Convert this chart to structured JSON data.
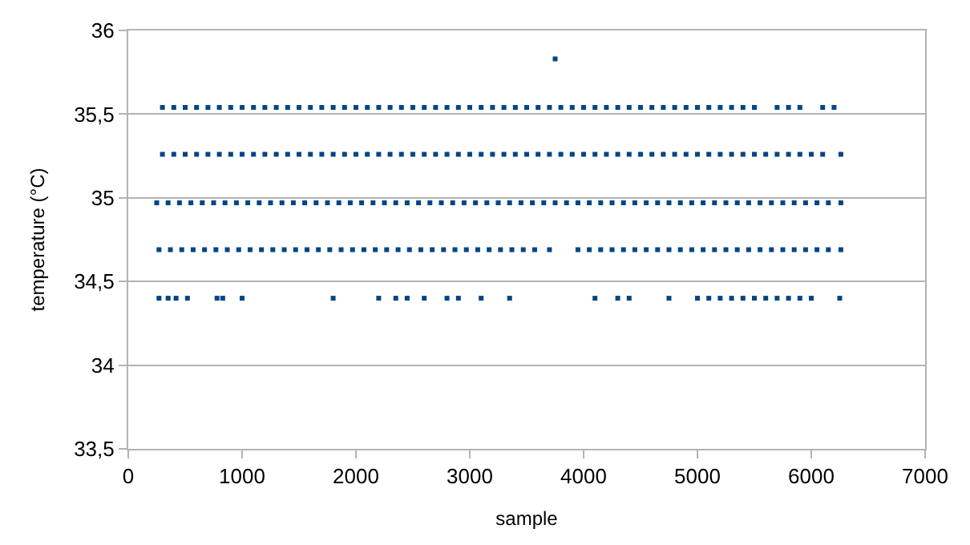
{
  "chart_data": {
    "type": "scatter",
    "xlabel": "sample",
    "ylabel": "temperature (°C)",
    "xlim": [
      0,
      7000
    ],
    "xticks": [
      0,
      1000,
      2000,
      3000,
      4000,
      5000,
      6000,
      7000
    ],
    "ylim": [
      33.5,
      36
    ],
    "yticks": [
      {
        "value": 33.5,
        "label": "33,5"
      },
      34,
      {
        "value": 34.5,
        "label": "34,5"
      },
      35,
      {
        "value": 35.5,
        "label": "35,5"
      },
      36
    ],
    "grid": "y",
    "marker": "square",
    "series": [
      {
        "color": "#004586",
        "x": [
          3750
        ],
        "values": [
          35.83
        ]
      },
      {
        "color": "#004586",
        "x": [
          300,
          400,
          500,
          600,
          700,
          800,
          900,
          1000,
          1100,
          1200,
          1300,
          1400,
          1500,
          1600,
          1700,
          1800,
          1900,
          2000,
          2100,
          2200,
          2300,
          2400,
          2500,
          2600,
          2700,
          2800,
          2900,
          3000,
          3100,
          3200,
          3300,
          3400,
          3500,
          3600,
          3700,
          3800,
          3900,
          4000,
          4100,
          4200,
          4300,
          4400,
          4500,
          4600,
          4700,
          4800,
          4900,
          5000,
          5100,
          5200,
          5300,
          5400,
          5500,
          5700,
          5800,
          5900,
          6100,
          6200
        ],
        "values": [
          35.54,
          35.54,
          35.54,
          35.54,
          35.54,
          35.54,
          35.54,
          35.54,
          35.54,
          35.54,
          35.54,
          35.54,
          35.54,
          35.54,
          35.54,
          35.54,
          35.54,
          35.54,
          35.54,
          35.54,
          35.54,
          35.54,
          35.54,
          35.54,
          35.54,
          35.54,
          35.54,
          35.54,
          35.54,
          35.54,
          35.54,
          35.54,
          35.54,
          35.54,
          35.54,
          35.54,
          35.54,
          35.54,
          35.54,
          35.54,
          35.54,
          35.54,
          35.54,
          35.54,
          35.54,
          35.54,
          35.54,
          35.54,
          35.54,
          35.54,
          35.54,
          35.54,
          35.54,
          35.54,
          35.54,
          35.54,
          35.54,
          35.54
        ]
      },
      {
        "color": "#004586",
        "x": [
          300,
          400,
          500,
          600,
          700,
          800,
          900,
          1000,
          1100,
          1200,
          1300,
          1400,
          1500,
          1600,
          1700,
          1800,
          1900,
          2000,
          2100,
          2200,
          2300,
          2400,
          2500,
          2600,
          2700,
          2800,
          2900,
          3000,
          3100,
          3200,
          3300,
          3400,
          3500,
          3600,
          3700,
          3800,
          3900,
          4000,
          4100,
          4200,
          4300,
          4400,
          4500,
          4600,
          4700,
          4800,
          4900,
          5000,
          5100,
          5200,
          5300,
          5400,
          5500,
          5600,
          5700,
          5800,
          5900,
          6000,
          6100,
          6260
        ],
        "values": [
          35.26,
          35.26,
          35.26,
          35.26,
          35.26,
          35.26,
          35.26,
          35.26,
          35.26,
          35.26,
          35.26,
          35.26,
          35.26,
          35.26,
          35.26,
          35.26,
          35.26,
          35.26,
          35.26,
          35.26,
          35.26,
          35.26,
          35.26,
          35.26,
          35.26,
          35.26,
          35.26,
          35.26,
          35.26,
          35.26,
          35.26,
          35.26,
          35.26,
          35.26,
          35.26,
          35.26,
          35.26,
          35.26,
          35.26,
          35.26,
          35.26,
          35.26,
          35.26,
          35.26,
          35.26,
          35.26,
          35.26,
          35.26,
          35.26,
          35.26,
          35.26,
          35.26,
          35.26,
          35.26,
          35.26,
          35.26,
          35.26,
          35.26,
          35.26,
          35.26
        ]
      },
      {
        "color": "#004586",
        "x": [
          250,
          350,
          450,
          550,
          650,
          750,
          850,
          950,
          1050,
          1150,
          1250,
          1350,
          1450,
          1550,
          1650,
          1750,
          1850,
          1950,
          2050,
          2150,
          2250,
          2350,
          2450,
          2550,
          2650,
          2750,
          2850,
          2950,
          3050,
          3150,
          3250,
          3350,
          3450,
          3550,
          3650,
          3750,
          3850,
          3950,
          4050,
          4150,
          4250,
          4350,
          4450,
          4550,
          4650,
          4750,
          4850,
          4950,
          5050,
          5150,
          5250,
          5350,
          5450,
          5550,
          5650,
          5750,
          5850,
          5950,
          6050,
          6150,
          6260
        ],
        "values": [
          34.97,
          34.97,
          34.97,
          34.97,
          34.97,
          34.97,
          34.97,
          34.97,
          34.97,
          34.97,
          34.97,
          34.97,
          34.97,
          34.97,
          34.97,
          34.97,
          34.97,
          34.97,
          34.97,
          34.97,
          34.97,
          34.97,
          34.97,
          34.97,
          34.97,
          34.97,
          34.97,
          34.97,
          34.97,
          34.97,
          34.97,
          34.97,
          34.97,
          34.97,
          34.97,
          34.97,
          34.97,
          34.97,
          34.97,
          34.97,
          34.97,
          34.97,
          34.97,
          34.97,
          34.97,
          34.97,
          34.97,
          34.97,
          34.97,
          34.97,
          34.97,
          34.97,
          34.97,
          34.97,
          34.97,
          34.97,
          34.97,
          34.97,
          34.97,
          34.97,
          34.97
        ]
      },
      {
        "color": "#004586",
        "x": [
          270,
          370,
          470,
          570,
          670,
          770,
          870,
          970,
          1070,
          1170,
          1270,
          1370,
          1470,
          1570,
          1670,
          1770,
          1870,
          1970,
          2070,
          2170,
          2270,
          2370,
          2470,
          2570,
          2670,
          2770,
          2870,
          2970,
          3070,
          3170,
          3270,
          3370,
          3470,
          3570,
          3700,
          3950,
          4050,
          4150,
          4250,
          4350,
          4450,
          4550,
          4650,
          4750,
          4850,
          4950,
          5050,
          5150,
          5250,
          5350,
          5450,
          5550,
          5650,
          5750,
          5850,
          5950,
          6050,
          6150,
          6260
        ],
        "values": [
          34.69,
          34.69,
          34.69,
          34.69,
          34.69,
          34.69,
          34.69,
          34.69,
          34.69,
          34.69,
          34.69,
          34.69,
          34.69,
          34.69,
          34.69,
          34.69,
          34.69,
          34.69,
          34.69,
          34.69,
          34.69,
          34.69,
          34.69,
          34.69,
          34.69,
          34.69,
          34.69,
          34.69,
          34.69,
          34.69,
          34.69,
          34.69,
          34.69,
          34.69,
          34.69,
          34.69,
          34.69,
          34.69,
          34.69,
          34.69,
          34.69,
          34.69,
          34.69,
          34.69,
          34.69,
          34.69,
          34.69,
          34.69,
          34.69,
          34.69,
          34.69,
          34.69,
          34.69,
          34.69,
          34.69,
          34.69,
          34.69,
          34.69,
          34.69
        ]
      },
      {
        "color": "#004586",
        "x": [
          270,
          350,
          420,
          520,
          780,
          830,
          1000,
          1800,
          2200,
          2350,
          2450,
          2600,
          2800,
          2900,
          3100,
          3350,
          4100,
          4300,
          4400,
          4750,
          5000,
          5100,
          5200,
          5300,
          5400,
          5500,
          5600,
          5700,
          5800,
          5900,
          6000,
          6250
        ],
        "values": [
          34.4,
          34.4,
          34.4,
          34.4,
          34.4,
          34.4,
          34.4,
          34.4,
          34.4,
          34.4,
          34.4,
          34.4,
          34.4,
          34.4,
          34.4,
          34.4,
          34.4,
          34.4,
          34.4,
          34.4,
          34.4,
          34.4,
          34.4,
          34.4,
          34.4,
          34.4,
          34.4,
          34.4,
          34.4,
          34.4,
          34.4,
          34.4
        ]
      }
    ]
  }
}
